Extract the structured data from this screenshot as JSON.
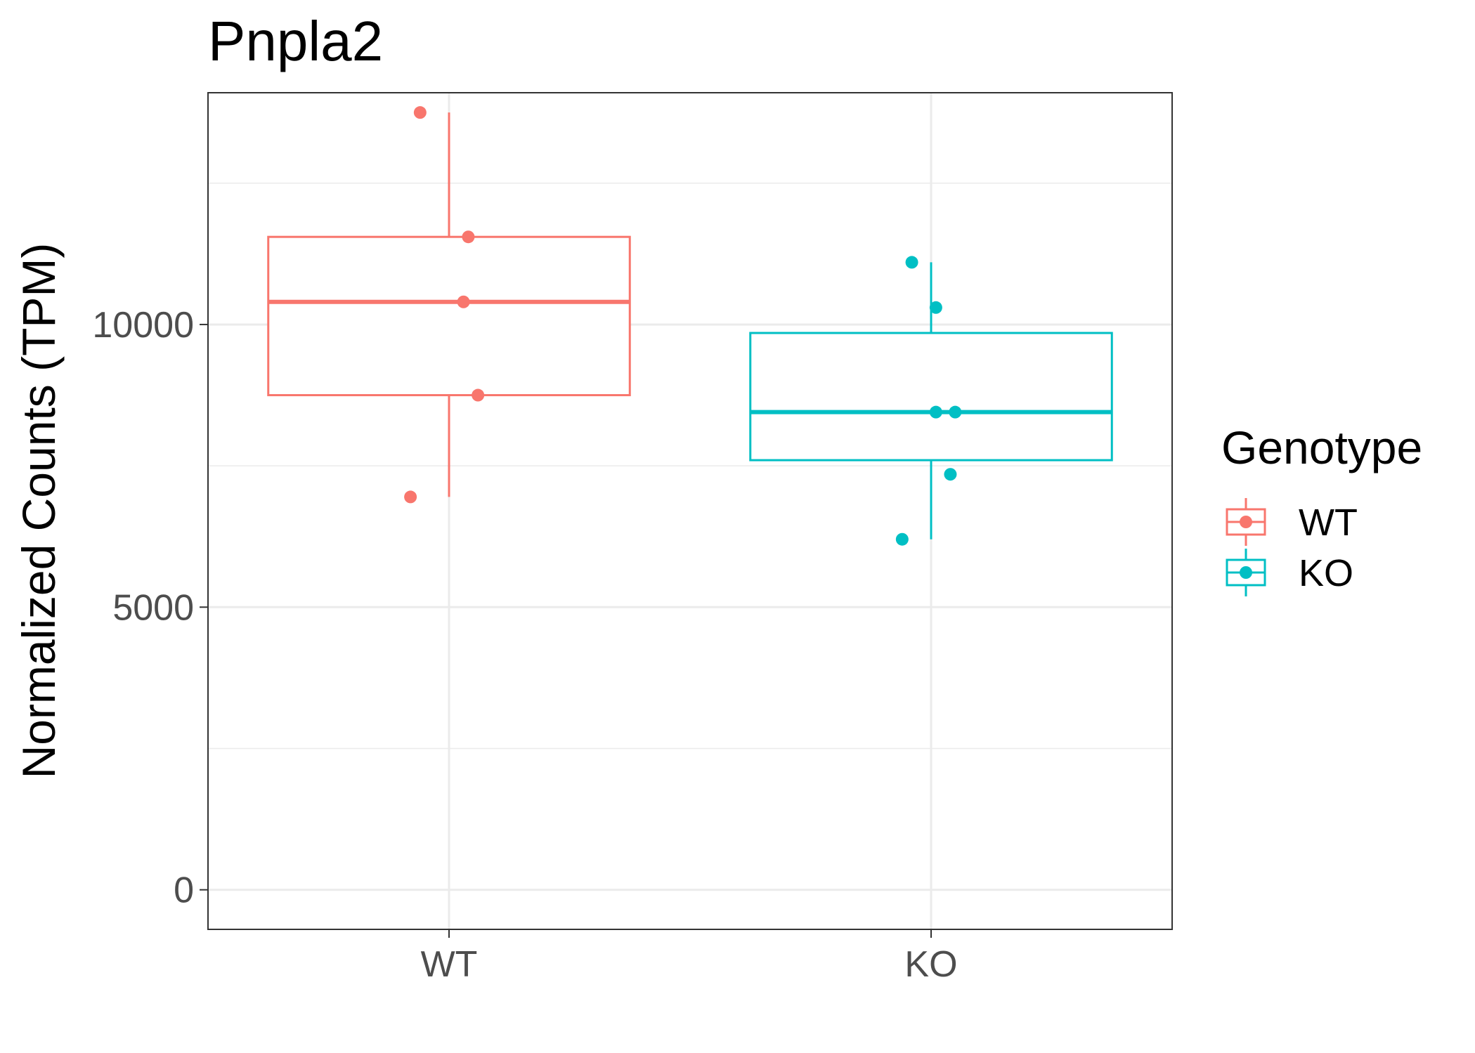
{
  "chart_data": {
    "type": "box",
    "title": "Pnpla2",
    "xlabel": "",
    "ylabel": "Normalized Counts (TPM)",
    "ylim": [
      -700,
      14100
    ],
    "yticks": [
      0,
      5000,
      10000
    ],
    "ytick_labels": [
      "0",
      "5000",
      "10000"
    ],
    "categories": [
      "WT",
      "KO"
    ],
    "grid": true,
    "legend": {
      "title": "Genotype",
      "position": "right",
      "entries": [
        "WT",
        "KO"
      ]
    },
    "series": [
      {
        "name": "WT",
        "color": "#F8766D",
        "box": {
          "whisker_low": 6950,
          "q1": 8750,
          "median": 10400,
          "q3": 11550,
          "whisker_high": 13750
        },
        "points": [
          {
            "jitter": -0.06,
            "y": 13750
          },
          {
            "jitter": 0.04,
            "y": 11550
          },
          {
            "jitter": 0.03,
            "y": 10400
          },
          {
            "jitter": 0.06,
            "y": 8750
          },
          {
            "jitter": -0.08,
            "y": 6950
          }
        ]
      },
      {
        "name": "KO",
        "color": "#00BFC4",
        "box": {
          "whisker_low": 6200,
          "q1": 7600,
          "median": 8450,
          "q3": 9850,
          "whisker_high": 11100
        },
        "points": [
          {
            "jitter": -0.04,
            "y": 11100
          },
          {
            "jitter": 0.01,
            "y": 10300
          },
          {
            "jitter": 0.01,
            "y": 8450
          },
          {
            "jitter": 0.05,
            "y": 8450
          },
          {
            "jitter": 0.04,
            "y": 7350
          },
          {
            "jitter": -0.06,
            "y": 6200
          }
        ]
      }
    ]
  }
}
